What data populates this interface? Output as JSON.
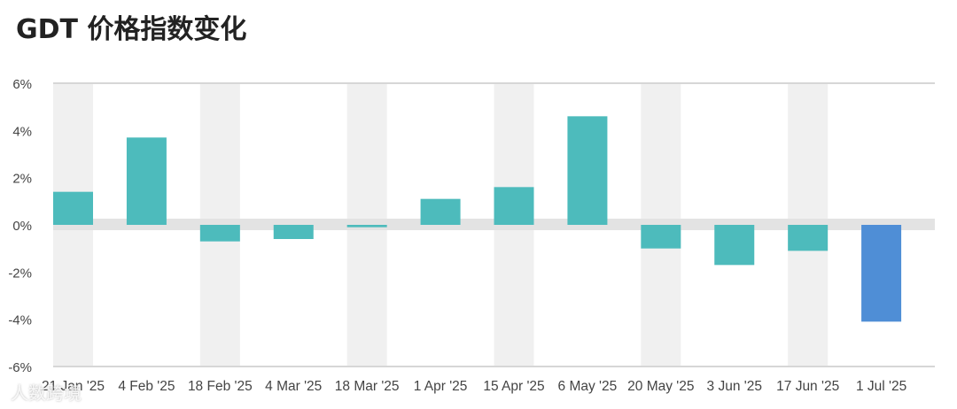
{
  "title": "GDT 价格指数变化",
  "watermark": "人数跨境",
  "colors": {
    "positive": "#4DBBBC",
    "negative": "#4DBBBC",
    "latest": "#4F8ED6",
    "band": "#F0F0F0",
    "zero_band": "#E3E3E3",
    "axis_text": "#444444"
  },
  "chart_data": {
    "type": "bar",
    "title": "GDT 价格指数变化",
    "xlabel": "",
    "ylabel": "",
    "ylim": [
      -6,
      6
    ],
    "y_ticks": [
      6,
      4,
      2,
      0,
      -2,
      -4,
      -6
    ],
    "y_tick_labels": [
      "6%",
      "4%",
      "2%",
      "0%",
      "-2%",
      "-4%",
      "-6%"
    ],
    "categories": [
      "21 Jan '25",
      "4 Feb '25",
      "18 Feb '25",
      "4 Mar '25",
      "18 Mar '25",
      "1 Apr '25",
      "15 Apr '25",
      "6 May '25",
      "20 May '25",
      "3 Jun '25",
      "17 Jun '25",
      "1 Jul '25"
    ],
    "values": [
      1.4,
      3.7,
      -0.7,
      -0.6,
      -0.1,
      1.1,
      1.6,
      4.6,
      -1.0,
      -1.7,
      -1.1,
      -4.1
    ],
    "highlight_last": true,
    "grid": false,
    "legend": "none"
  }
}
